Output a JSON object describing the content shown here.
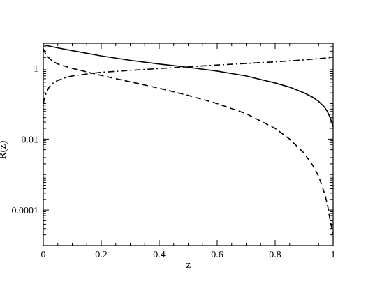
{
  "chart_data": {
    "type": "line",
    "xlabel": "z",
    "ylabel": "R(z)",
    "xlim": [
      0,
      1
    ],
    "ylim": [
      1e-05,
      5
    ],
    "yscale": "log",
    "grid": false,
    "legend": "none",
    "x_ticks": [
      "0",
      "0.2",
      "0.4",
      "0.6",
      "0.8",
      "1"
    ],
    "y_ticks": [
      "0.0001",
      "0.01",
      "1"
    ],
    "series": [
      {
        "style": "solid",
        "x": [
          0,
          0.05,
          0.1,
          0.2,
          0.3,
          0.4,
          0.5,
          0.6,
          0.7,
          0.8,
          0.85,
          0.9,
          0.93,
          0.95,
          0.97,
          0.98,
          0.99,
          0.995,
          1.0
        ],
        "y": [
          4.5,
          3.7,
          3.1,
          2.2,
          1.65,
          1.3,
          1.05,
          0.82,
          0.6,
          0.38,
          0.29,
          0.2,
          0.15,
          0.115,
          0.08,
          0.06,
          0.04,
          0.03,
          0.022
        ]
      },
      {
        "style": "dashed",
        "x": [
          0,
          0.01,
          0.03,
          0.05,
          0.1,
          0.2,
          0.3,
          0.4,
          0.5,
          0.6,
          0.7,
          0.8,
          0.85,
          0.9,
          0.93,
          0.95,
          0.97,
          0.98,
          0.99,
          1.0
        ],
        "y": [
          3.5,
          2.3,
          1.6,
          1.3,
          0.98,
          0.62,
          0.41,
          0.27,
          0.17,
          0.1,
          0.052,
          0.02,
          0.01,
          0.004,
          0.0018,
          0.0009,
          0.0003,
          0.00015,
          5e-05,
          2e-05
        ]
      },
      {
        "style": "dashdot",
        "x": [
          0,
          0.005,
          0.01,
          0.02,
          0.03,
          0.05,
          0.08,
          0.1,
          0.15,
          0.2,
          0.3,
          0.4,
          0.5,
          0.6,
          0.7,
          0.8,
          0.9,
          1.0
        ],
        "y": [
          0.1,
          0.15,
          0.2,
          0.29,
          0.36,
          0.45,
          0.55,
          0.6,
          0.68,
          0.76,
          0.86,
          0.97,
          1.08,
          1.22,
          1.35,
          1.5,
          1.7,
          2.0
        ]
      }
    ]
  }
}
